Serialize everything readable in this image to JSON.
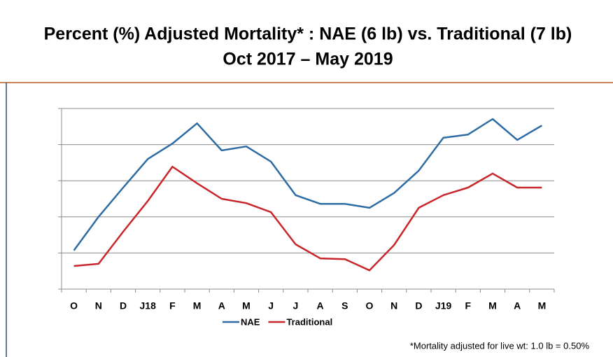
{
  "chart_data": {
    "type": "line",
    "title": "Percent (%) Adjusted Mortality* : NAE (6 lb) vs. Traditional (7 lb)",
    "subtitle": "Oct 2017 – May 2019",
    "categories": [
      "O",
      "N",
      "D",
      "J18",
      "F",
      "M",
      "A",
      "M",
      "J",
      "J",
      "A",
      "S",
      "O",
      "N",
      "D",
      "J19",
      "F",
      "M",
      "A",
      "M"
    ],
    "series": [
      {
        "name": "NAE",
        "color": "#2e6ca4",
        "values": [
          1.07,
          2.0,
          2.81,
          3.6,
          4.03,
          4.59,
          3.84,
          3.95,
          3.53,
          2.6,
          2.36,
          2.36,
          2.25,
          2.66,
          3.28,
          4.19,
          4.28,
          4.71,
          4.13,
          4.53
        ]
      },
      {
        "name": "Traditional",
        "color": "#c8262b",
        "values": [
          0.64,
          0.7,
          1.59,
          2.44,
          3.39,
          2.93,
          2.5,
          2.38,
          2.13,
          1.24,
          0.85,
          0.83,
          0.52,
          1.22,
          2.25,
          2.6,
          2.81,
          3.2,
          2.81,
          2.81
        ]
      }
    ],
    "ylim": [
      0,
      5
    ],
    "yticks": [
      0,
      1,
      2,
      3,
      4,
      5
    ],
    "grid": true,
    "note": "*Mortality adjusted for live wt: 1.0 lb = 0.50%"
  }
}
